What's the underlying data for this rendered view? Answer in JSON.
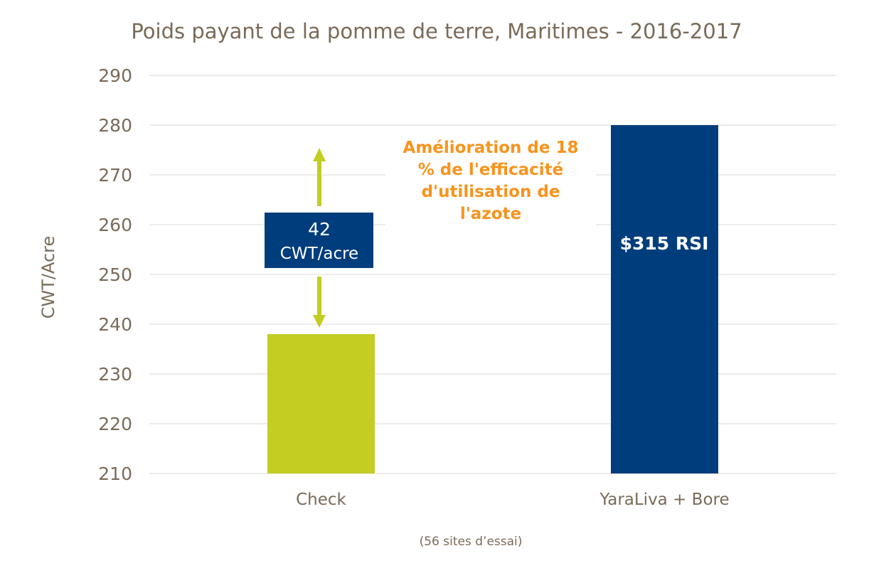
{
  "chart_data": {
    "type": "bar",
    "title": "Poids payant de la pomme de terre, Maritimes - 2016-2017",
    "ylabel": "CWT/Acre",
    "xlabel": "",
    "footnote": "(56 sites d’essai)",
    "categories": [
      "Check",
      "YaraLiva + Bore"
    ],
    "values": [
      238,
      280
    ],
    "ylim": [
      210,
      290
    ],
    "yticks": [
      210,
      220,
      230,
      240,
      250,
      260,
      270,
      280,
      290
    ],
    "grid": true,
    "colors": {
      "bars": [
        "#c3cd22",
        "#003d7c"
      ],
      "text": "#7a6a58",
      "annotation": "#f7941d",
      "label_box": "#003d7c",
      "arrow": "#c3cd22"
    },
    "annotations": {
      "difference_line1": "42",
      "difference_line2": "CWT/acre",
      "improvement_lines": [
        "Amélioration de 18",
        "% de l'efficacité",
        "d'utilisation de",
        "l'azote"
      ],
      "bar_label": "$315 RSI"
    }
  }
}
